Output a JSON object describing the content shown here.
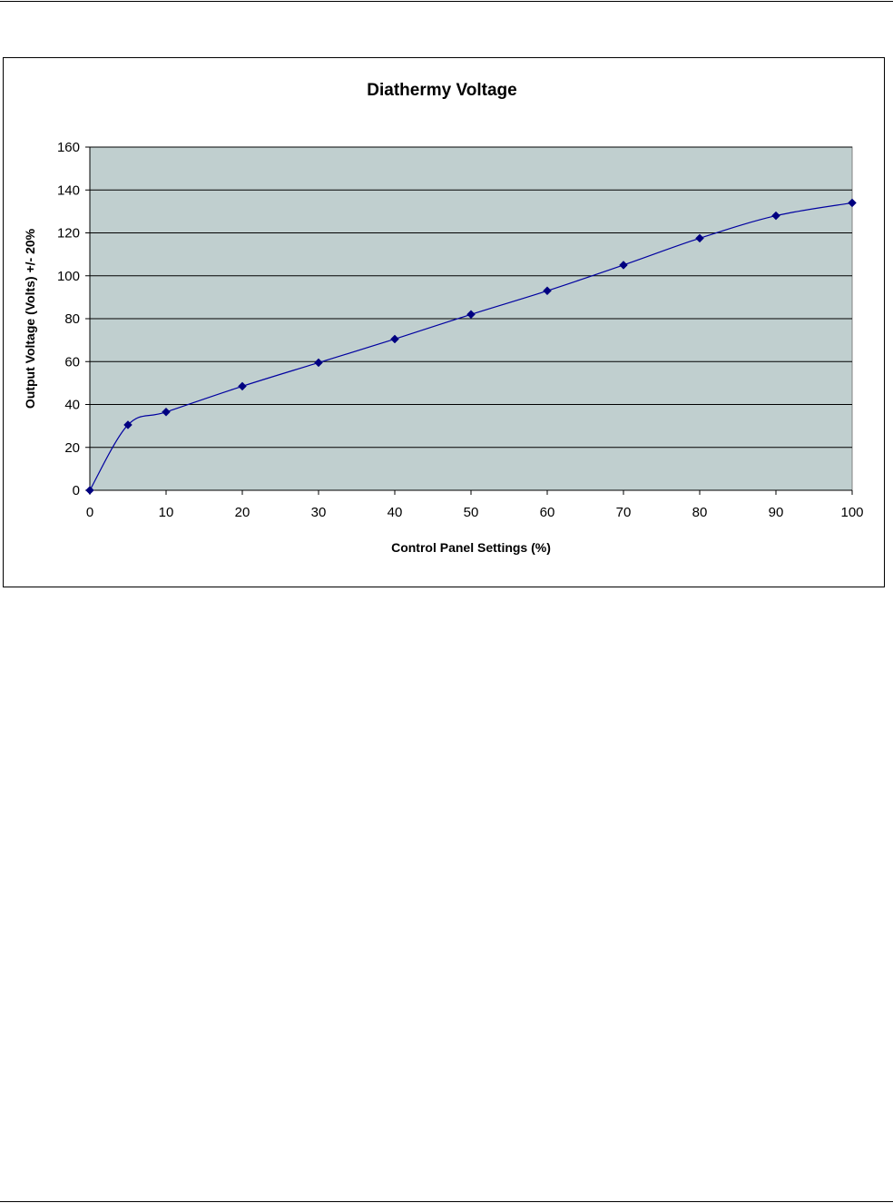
{
  "chart_data": {
    "type": "line",
    "title": "Diathermy Voltage",
    "xlabel": "Control Panel Settings (%)",
    "ylabel": "Output Voltage (Volts)  +/- 20%",
    "xlim": [
      0,
      100
    ],
    "ylim": [
      0,
      160
    ],
    "xticks": [
      0,
      10,
      20,
      30,
      40,
      50,
      60,
      70,
      80,
      90,
      100
    ],
    "yticks": [
      0,
      20,
      40,
      60,
      80,
      100,
      120,
      140,
      160
    ],
    "grid": "horizontal",
    "legend": "none",
    "series": [
      {
        "x": [
          0,
          5,
          10,
          20,
          30,
          40,
          50,
          60,
          70,
          80,
          90,
          100
        ],
        "values": [
          0,
          30.5,
          36.5,
          48.5,
          59.5,
          70.5,
          82,
          93,
          105,
          117.5,
          128,
          134
        ]
      }
    ],
    "colors": {
      "plot_background": "#c0cfcf",
      "line": "#0000a0",
      "marker": "#000080",
      "grid": "#000000"
    }
  }
}
